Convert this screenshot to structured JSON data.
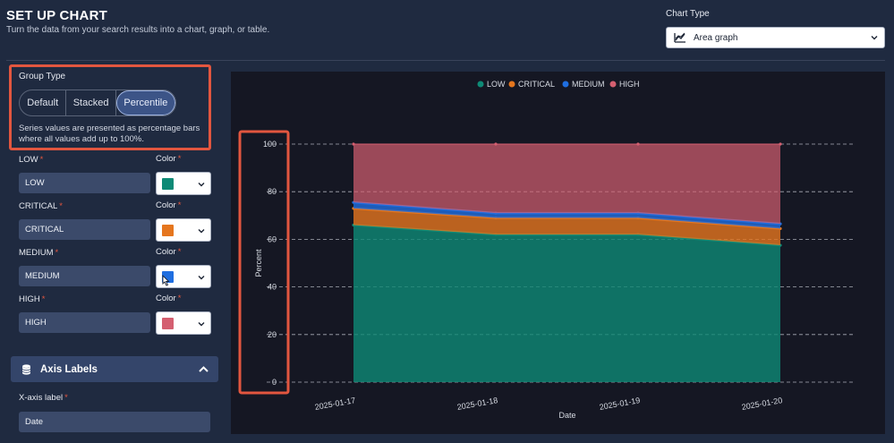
{
  "header": {
    "title": "SET UP CHART",
    "subtitle": "Turn the data from your search results into a chart, graph, or table.",
    "chart_type_label": "Chart Type",
    "chart_type_value": "Area graph"
  },
  "group_type": {
    "label": "Group Type",
    "options": [
      "Default",
      "Stacked",
      "Percentile"
    ],
    "selected": "Percentile",
    "description": "Series values are presented as percentage bars where all values add up to 100%."
  },
  "series": [
    {
      "label": "LOW",
      "value": "LOW",
      "color_label": "Color",
      "color": "#0e8a76"
    },
    {
      "label": "CRITICAL",
      "value": "CRITICAL",
      "color_label": "Color",
      "color": "#e5761e"
    },
    {
      "label": "MEDIUM",
      "value": "MEDIUM",
      "color_label": "Color",
      "color": "#1f6ee0"
    },
    {
      "label": "HIGH",
      "value": "HIGH",
      "color_label": "Color",
      "color": "#d45f70"
    }
  ],
  "axis_labels": {
    "section_title": "Axis Labels",
    "x_label_field": "X-axis label",
    "x_label_value": "Date"
  },
  "chart_data": {
    "type": "area",
    "stacking": "percent",
    "categories": [
      "2025-01-17",
      "2025-01-18",
      "2025-01-19",
      "2025-01-20"
    ],
    "series": [
      {
        "name": "LOW",
        "color": "#0e8a76",
        "values": [
          66,
          62,
          62,
          57.5
        ]
      },
      {
        "name": "CRITICAL",
        "color": "#e5761e",
        "values": [
          7,
          7,
          7,
          7
        ]
      },
      {
        "name": "MEDIUM",
        "color": "#1f6ee0",
        "values": [
          2.5,
          2,
          2,
          2
        ]
      },
      {
        "name": "HIGH",
        "color": "#d45f70",
        "values": [
          24.5,
          29,
          29,
          33.5
        ]
      }
    ],
    "ylabel": "Percent",
    "xlabel": "Date",
    "ylim": [
      0,
      100
    ],
    "yticks": [
      0,
      20,
      40,
      60,
      80,
      100
    ],
    "legend": "top-center",
    "grid": true
  }
}
